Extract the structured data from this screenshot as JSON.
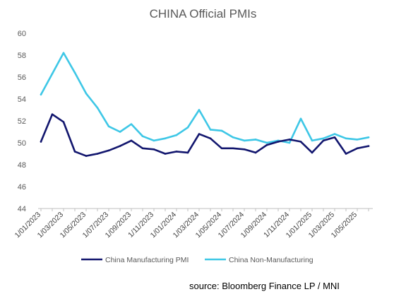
{
  "chart_data": {
    "type": "line",
    "title": "CHINA Official PMIs",
    "xlabel": "",
    "ylabel": "",
    "ylim": [
      44,
      60
    ],
    "yticks": [
      44,
      46,
      48,
      50,
      52,
      54,
      56,
      58,
      60
    ],
    "grid": false,
    "legend_position": "bottom",
    "x": [
      "1/01/2023",
      "1/02/2023",
      "1/03/2023",
      "1/04/2023",
      "1/05/2023",
      "1/06/2023",
      "1/07/2023",
      "1/08/2023",
      "1/09/2023",
      "1/10/2023",
      "1/11/2023",
      "1/12/2023",
      "1/01/2024",
      "1/02/2024",
      "1/03/2024",
      "1/04/2024",
      "1/05/2024",
      "1/06/2024",
      "1/07/2024",
      "1/08/2024",
      "1/09/2024",
      "1/10/2024",
      "1/11/2024",
      "1/12/2024",
      "1/01/2025",
      "1/02/2025",
      "1/03/2025",
      "1/04/2025",
      "1/05/2025",
      "1/06/2025"
    ],
    "xtick_labels": [
      "1/01/2023",
      "1/03/2023",
      "1/05/2023",
      "1/07/2023",
      "1/09/2023",
      "1/11/2023",
      "1/01/2024",
      "1/03/2024",
      "1/05/2024",
      "1/07/2024",
      "1/09/2024",
      "1/11/2024",
      "1/01/2025",
      "1/03/2025",
      "1/05/2025"
    ],
    "series": [
      {
        "name": "China Manufacturing PMI",
        "color": "#12166e",
        "values": [
          50.1,
          52.6,
          51.9,
          49.2,
          48.8,
          49.0,
          49.3,
          49.7,
          50.2,
          49.5,
          49.4,
          49.0,
          49.2,
          49.1,
          50.8,
          50.4,
          49.5,
          49.5,
          49.4,
          49.1,
          49.8,
          50.1,
          50.3,
          50.1,
          49.1,
          50.2,
          50.5,
          49.0,
          49.5,
          49.7
        ]
      },
      {
        "name": "China Non-Manufacturing",
        "color": "#3ec7e6",
        "values": [
          54.4,
          56.3,
          58.2,
          56.4,
          54.5,
          53.2,
          51.5,
          51.0,
          51.7,
          50.6,
          50.2,
          50.4,
          50.7,
          51.4,
          53.0,
          51.2,
          51.1,
          50.5,
          50.2,
          50.3,
          50.0,
          50.2,
          50.0,
          52.2,
          50.2,
          50.4,
          50.8,
          50.4,
          50.3,
          50.5
        ]
      }
    ]
  },
  "source_note": "source: Bloomberg Finance LP / MNI"
}
